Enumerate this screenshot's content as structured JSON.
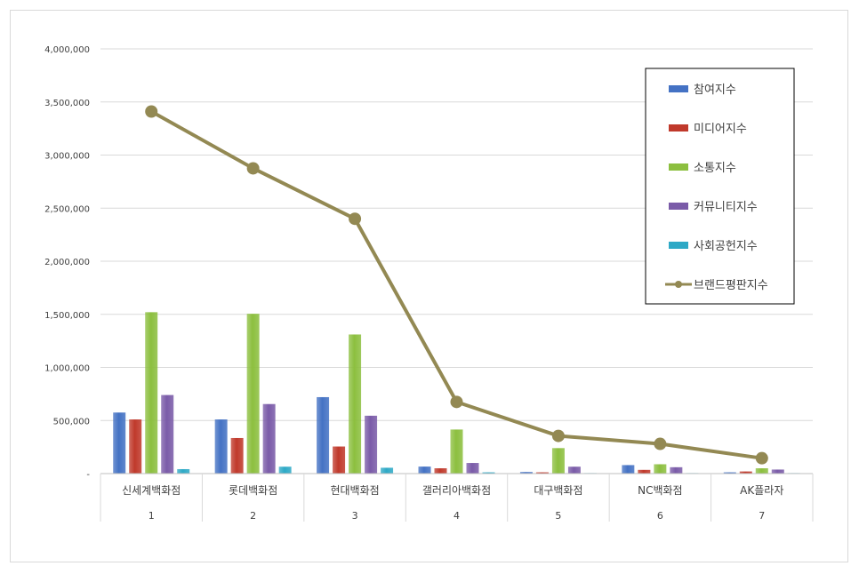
{
  "chart_data": {
    "type": "bar",
    "categories": [
      "신세계백화점",
      "롯데백화점",
      "현대백화점",
      "갤러리아백화점",
      "대구백화점",
      "NC백화점",
      "AK플라자"
    ],
    "category_index": [
      "1",
      "2",
      "3",
      "4",
      "5",
      "6",
      "7"
    ],
    "ylim": [
      0,
      4000000
    ],
    "ytick_labels": [
      "-",
      "500,000",
      "1,000,000",
      "1,500,000",
      "2,000,000",
      "2,500,000",
      "3,000,000",
      "3,500,000",
      "4,000,000"
    ],
    "ytick_values": [
      0,
      500000,
      1000000,
      1500000,
      2000000,
      2500000,
      3000000,
      3500000,
      4000000
    ],
    "grid": true,
    "legend_position": "top-right",
    "series": [
      {
        "name": "참여지수",
        "type": "bar",
        "color": "#4472c4",
        "values": [
          575000,
          510000,
          720000,
          66000,
          15000,
          80000,
          12000
        ]
      },
      {
        "name": "미디어지수",
        "type": "bar",
        "color": "#c0392b",
        "values": [
          510000,
          335000,
          255000,
          50000,
          12000,
          35000,
          20000
        ]
      },
      {
        "name": "소통지수",
        "type": "bar",
        "color": "#8cbf3f",
        "values": [
          1520000,
          1505000,
          1310000,
          415000,
          240000,
          88000,
          50000
        ]
      },
      {
        "name": "커뮤니티지수",
        "type": "bar",
        "color": "#7a5ba8",
        "values": [
          740000,
          655000,
          545000,
          100000,
          65000,
          60000,
          38000
        ]
      },
      {
        "name": "사회공헌지수",
        "type": "bar",
        "color": "#2ea9c6",
        "values": [
          42000,
          65000,
          55000,
          12000,
          5000,
          5000,
          5000
        ]
      },
      {
        "name": "브랜드평판지수",
        "type": "line",
        "color": "#938953",
        "values": [
          3410000,
          2875000,
          2400000,
          675000,
          355000,
          280000,
          145000
        ]
      }
    ]
  }
}
